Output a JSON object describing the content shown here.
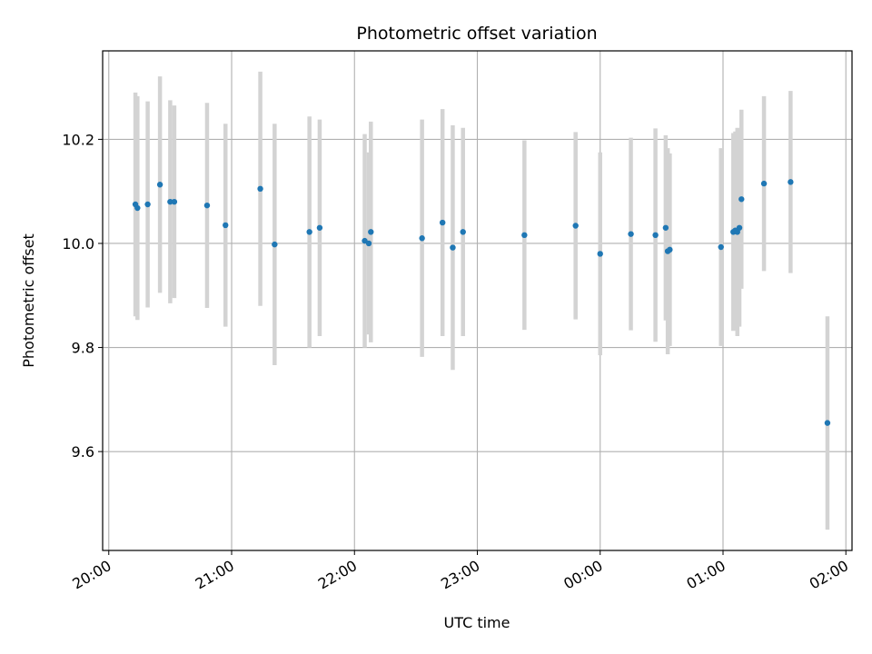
{
  "chart_data": {
    "type": "scatter",
    "title": "Photometric offset variation",
    "xlabel": "UTC time",
    "ylabel": "Photometric offset",
    "grid": true,
    "x_tick_labels": [
      "20:00",
      "21:00",
      "22:00",
      "23:00",
      "00:00",
      "01:00",
      "02:00"
    ],
    "y_tick_labels": [
      "9.6",
      "9.8",
      "10.0",
      "10.2"
    ],
    "y_ticks": [
      9.6,
      9.8,
      10.0,
      10.2
    ],
    "xlim": [
      "19:57",
      "02:03"
    ],
    "ylim": [
      9.41,
      10.37
    ],
    "colors": {
      "point": "#1f77b4",
      "errorbar": "#d3d3d3",
      "grid": "#b0b0b0"
    },
    "points": [
      {
        "x": "20:13",
        "y": 10.075,
        "yerr": 0.215
      },
      {
        "x": "20:14",
        "y": 10.068,
        "yerr": 0.215
      },
      {
        "x": "20:19",
        "y": 10.075,
        "yerr": 0.198
      },
      {
        "x": "20:25",
        "y": 10.113,
        "yerr": 0.208
      },
      {
        "x": "20:30",
        "y": 10.08,
        "yerr": 0.195
      },
      {
        "x": "20:32",
        "y": 10.08,
        "yerr": 0.185
      },
      {
        "x": "20:48",
        "y": 10.073,
        "yerr": 0.197
      },
      {
        "x": "20:57",
        "y": 10.035,
        "yerr": 0.195
      },
      {
        "x": "21:14",
        "y": 10.105,
        "yerr": 0.225
      },
      {
        "x": "21:21",
        "y": 9.998,
        "yerr": 0.232
      },
      {
        "x": "21:38",
        "y": 10.022,
        "yerr": 0.222
      },
      {
        "x": "21:43",
        "y": 10.03,
        "yerr": 0.208
      },
      {
        "x": "22:05",
        "y": 10.005,
        "yerr": 0.205
      },
      {
        "x": "22:07",
        "y": 10.0,
        "yerr": 0.175
      },
      {
        "x": "22:08",
        "y": 10.022,
        "yerr": 0.212
      },
      {
        "x": "22:33",
        "y": 10.01,
        "yerr": 0.228
      },
      {
        "x": "22:43",
        "y": 10.04,
        "yerr": 0.218
      },
      {
        "x": "22:48",
        "y": 9.992,
        "yerr": 0.235
      },
      {
        "x": "22:53",
        "y": 10.022,
        "yerr": 0.2
      },
      {
        "x": "23:23",
        "y": 10.016,
        "yerr": 0.182
      },
      {
        "x": "23:48",
        "y": 10.034,
        "yerr": 0.18
      },
      {
        "x": "00:00",
        "y": 9.98,
        "yerr": 0.195
      },
      {
        "x": "00:15",
        "y": 10.018,
        "yerr": 0.185
      },
      {
        "x": "00:27",
        "y": 10.016,
        "yerr": 0.205
      },
      {
        "x": "00:32",
        "y": 10.03,
        "yerr": 0.178
      },
      {
        "x": "00:33",
        "y": 9.985,
        "yerr": 0.198
      },
      {
        "x": "00:34",
        "y": 9.988,
        "yerr": 0.185
      },
      {
        "x": "00:59",
        "y": 9.993,
        "yerr": 0.19
      },
      {
        "x": "01:05",
        "y": 10.022,
        "yerr": 0.19
      },
      {
        "x": "01:06",
        "y": 10.025,
        "yerr": 0.19
      },
      {
        "x": "01:07",
        "y": 10.022,
        "yerr": 0.2
      },
      {
        "x": "01:08",
        "y": 10.03,
        "yerr": 0.19
      },
      {
        "x": "01:09",
        "y": 10.085,
        "yerr": 0.172
      },
      {
        "x": "01:20",
        "y": 10.115,
        "yerr": 0.168
      },
      {
        "x": "01:33",
        "y": 10.118,
        "yerr": 0.175
      },
      {
        "x": "01:51",
        "y": 9.655,
        "yerr": 0.205
      }
    ]
  }
}
